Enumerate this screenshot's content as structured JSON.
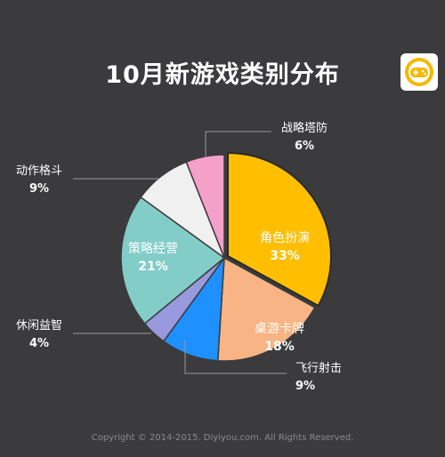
{
  "title": "10月新游戏类别分布",
  "footer": "Copyright © 2014-2015. Diyiyou.com. All Rights Reserved.",
  "logo_icon": "gamepad-icon",
  "chart_data": {
    "type": "pie",
    "title": "10月新游戏类别分布",
    "start": "top, clockwise",
    "slices": [
      {
        "label": "角色扮演",
        "value": 33,
        "display": "33%",
        "color": "#ffbf00"
      },
      {
        "label": "桌游卡牌",
        "value": 18,
        "display": "18%",
        "color": "#f8b484"
      },
      {
        "label": "飞行射击",
        "value": 9,
        "display": "9%",
        "color": "#1e90ff"
      },
      {
        "label": "休闲益智",
        "value": 4,
        "display": "4%",
        "color": "#9999dd"
      },
      {
        "label": "策略经营",
        "value": 21,
        "display": "21%",
        "color": "#82cdc8"
      },
      {
        "label": "动作格斗",
        "value": 9,
        "display": "9%",
        "color": "#f0f0f0"
      },
      {
        "label": "战略塔防",
        "value": 6,
        "display": "6%",
        "color": "#f4a0c8"
      }
    ]
  }
}
